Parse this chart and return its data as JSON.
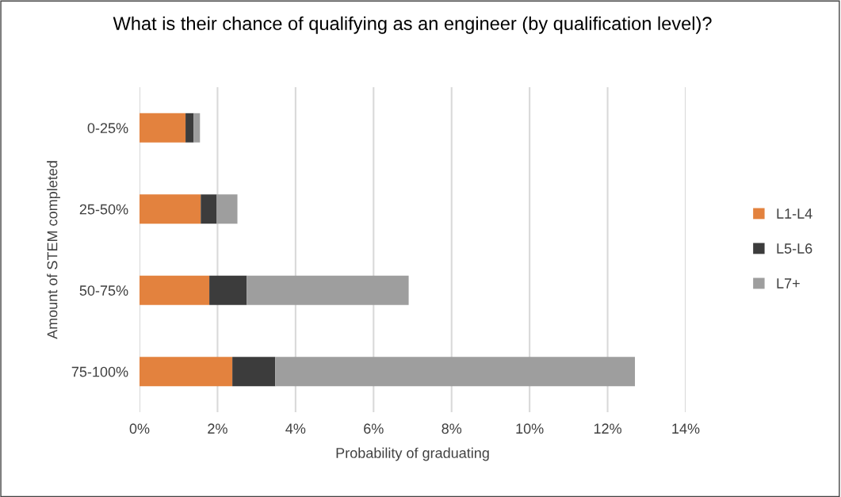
{
  "chart_data": {
    "type": "bar",
    "orientation": "horizontal",
    "stacked": true,
    "title": "What is their chance of qualifying as an engineer (by qualification level)?",
    "xlabel": "Probability of graduating",
    "ylabel": "Amount of STEM completed",
    "categories": [
      "0-25%",
      "25-50%",
      "50-75%",
      "75-100%"
    ],
    "series": [
      {
        "name": "L1-L4",
        "color": "#e3823e",
        "values": [
          1.18,
          1.57,
          1.79,
          2.38
        ]
      },
      {
        "name": "L5-L6",
        "color": "#3c3c3c",
        "values": [
          0.21,
          0.41,
          0.96,
          1.1
        ]
      },
      {
        "name": "L7+",
        "color": "#9e9e9e",
        "values": [
          0.16,
          0.53,
          4.15,
          9.22
        ]
      }
    ],
    "xlim": [
      0,
      14
    ],
    "xticks": [
      {
        "value": 0,
        "label": "0%"
      },
      {
        "value": 2,
        "label": "2%"
      },
      {
        "value": 4,
        "label": "4%"
      },
      {
        "value": 6,
        "label": "6%"
      },
      {
        "value": 8,
        "label": "8%"
      },
      {
        "value": 10,
        "label": "10%"
      },
      {
        "value": 12,
        "label": "12%"
      },
      {
        "value": 14,
        "label": "14%"
      }
    ],
    "grid": "x",
    "legend": "right"
  }
}
